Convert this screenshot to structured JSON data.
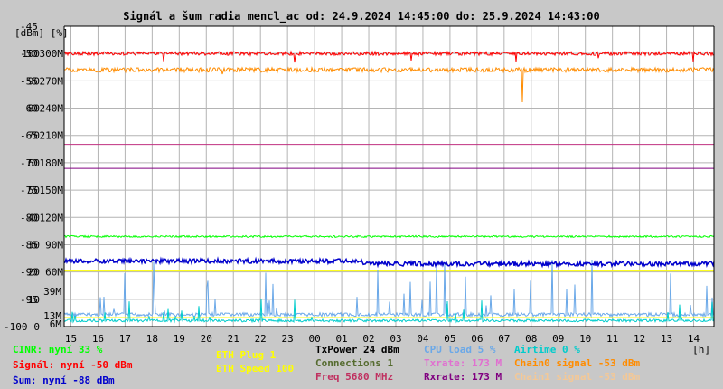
{
  "title": "Signál a šum radia mencl_ac od: 24.9.2024 14:45:00 do: 25.9.2024 14:43:00",
  "chart_data": {
    "type": "line",
    "title": "Signál a šum radia mencl_ac od: 24.9.2024 14:45:00 do: 25.9.2024 14:43:00",
    "y_axis": {
      "unit_label": "[dBm] [%]",
      "range_dbm": [
        -100,
        -45
      ],
      "range_percent": [
        0,
        100
      ],
      "range_rate_M": [
        0,
        300
      ],
      "dbm_ticks": [
        "-45",
        "-50",
        "-55",
        "-60",
        "-65",
        "-70",
        "-75",
        "-80",
        "-85",
        "-90",
        "-95",
        "-100"
      ],
      "percent_ticks": [
        "100",
        "90",
        "80",
        "70",
        "60",
        "50",
        "40",
        "30",
        "20",
        "10",
        "0"
      ],
      "rate_ticks": [
        "300M",
        "270M",
        "240M",
        "210M",
        "180M",
        "150M",
        "120M",
        "90M",
        "60M"
      ],
      "rate_ticks_low": [
        "39M",
        "13M",
        "6M"
      ]
    },
    "x_axis": {
      "unit_label": "[h]",
      "ticks": [
        "15",
        "16",
        "17",
        "18",
        "19",
        "20",
        "21",
        "22",
        "23",
        "00",
        "01",
        "02",
        "03",
        "04",
        "05",
        "06",
        "07",
        "08",
        "09",
        "10",
        "11",
        "12",
        "13",
        "14"
      ]
    },
    "grid": true,
    "series": [
      {
        "name": "Signál",
        "unit": "dBm",
        "color": "#ff0000",
        "level": -50
      },
      {
        "name": "Chain0 signal",
        "unit": "dBm",
        "color": "#ff8c00",
        "level": -53
      },
      {
        "name": "Txrate",
        "unit": "M",
        "color": "#c03080",
        "level": 173
      },
      {
        "name": "Rxrate",
        "unit": "M",
        "color": "#800080",
        "level": 173
      },
      {
        "name": "CINR",
        "unit": "%",
        "color": "#00ff00",
        "level": 33
      },
      {
        "name": "Šum",
        "unit": "dBm",
        "color": "#0000cc",
        "level": -88
      },
      {
        "name": "CPU load",
        "unit": "%",
        "color": "#6aa8e8",
        "level": 5
      },
      {
        "name": "Airtime",
        "unit": "%",
        "color": "#00cccc",
        "level": 0
      },
      {
        "name": "ETH Speed",
        "unit": "",
        "color": "#ffff00",
        "level": 100
      }
    ]
  },
  "legend": {
    "cinr": "CINR: nyní 33 %",
    "signal": "Signál: nyní -50 dBm",
    "sum": "Šum: nyní -88 dBm",
    "eth_plug": "ETH Plug 1",
    "eth_speed": "ETH Speed 100",
    "txpower": "TxPower 24 dBm",
    "connections": "Connections 1",
    "freq": "Freq 5680 MHz",
    "cpu": "CPU load 5 %",
    "txrate": "Txrate: 173 M",
    "rxrate": "Rxrate: 173 M",
    "airtime": "Airtime 0 %",
    "chain0": "Chain0 signal -53 dBm",
    "chain1": "Chain1 signal -53 dBm"
  },
  "colors": {
    "background": "#c8c8c8",
    "plot": "#ffffff",
    "grid": "#b4b4b4"
  }
}
